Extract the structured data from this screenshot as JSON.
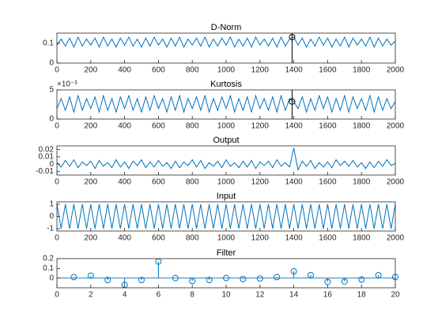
{
  "chart_data": [
    {
      "type": "line",
      "title": "D-Norm",
      "x": [
        0,
        25,
        50,
        75,
        100,
        125,
        150,
        175,
        200,
        225,
        250,
        275,
        300,
        325,
        350,
        375,
        400,
        425,
        450,
        475,
        500,
        525,
        550,
        575,
        600,
        625,
        650,
        675,
        700,
        725,
        750,
        775,
        800,
        825,
        850,
        875,
        900,
        925,
        950,
        975,
        1000,
        1025,
        1050,
        1075,
        1100,
        1125,
        1150,
        1175,
        1200,
        1225,
        1250,
        1275,
        1300,
        1325,
        1350,
        1375,
        1400,
        1425,
        1450,
        1475,
        1500,
        1525,
        1550,
        1575,
        1600,
        1625,
        1650,
        1675,
        1700,
        1725,
        1750,
        1775,
        1800,
        1825,
        1850,
        1875,
        1900,
        1925,
        1950,
        1975,
        2000
      ],
      "series": [
        {
          "color": "#0072bd",
          "values": [
            0.09,
            0.12,
            0.085,
            0.125,
            0.08,
            0.13,
            0.085,
            0.12,
            0.09,
            0.125,
            0.08,
            0.13,
            0.085,
            0.12,
            0.08,
            0.125,
            0.09,
            0.13,
            0.085,
            0.12,
            0.08,
            0.125,
            0.085,
            0.13,
            0.09,
            0.12,
            0.08,
            0.125,
            0.085,
            0.13,
            0.08,
            0.12,
            0.09,
            0.125,
            0.085,
            0.13,
            0.08,
            0.12,
            0.085,
            0.125,
            0.09,
            0.13,
            0.08,
            0.12,
            0.085,
            0.125,
            0.08,
            0.13,
            0.09,
            0.12,
            0.085,
            0.125,
            0.08,
            0.13,
            0.085,
            0.12,
            0.13,
            0.09,
            0.125,
            0.08,
            0.12,
            0.085,
            0.13,
            0.09,
            0.125,
            0.08,
            0.12,
            0.085,
            0.13,
            0.08,
            0.125,
            0.09,
            0.12,
            0.085,
            0.13,
            0.08,
            0.125,
            0.085,
            0.12,
            0.09,
            0.11
          ]
        }
      ],
      "marker": {
        "x": 1390,
        "y": 0.13
      },
      "xlim": [
        0,
        2000
      ],
      "xticks": [
        0,
        200,
        400,
        600,
        800,
        1000,
        1200,
        1400,
        1600,
        1800,
        2000
      ],
      "ylim": [
        0,
        0.15
      ],
      "yticks": [
        0,
        0.1
      ]
    },
    {
      "type": "line",
      "title": "Kurtosis",
      "y_exponent": "×10⁻³",
      "x": [
        0,
        25,
        50,
        75,
        100,
        125,
        150,
        175,
        200,
        225,
        250,
        275,
        300,
        325,
        350,
        375,
        400,
        425,
        450,
        475,
        500,
        525,
        550,
        575,
        600,
        625,
        650,
        675,
        700,
        725,
        750,
        775,
        800,
        825,
        850,
        875,
        900,
        925,
        950,
        975,
        1000,
        1025,
        1050,
        1075,
        1100,
        1125,
        1150,
        1175,
        1200,
        1225,
        1250,
        1275,
        1300,
        1325,
        1350,
        1375,
        1400,
        1425,
        1450,
        1475,
        1500,
        1525,
        1550,
        1575,
        1600,
        1625,
        1650,
        1675,
        1700,
        1725,
        1750,
        1775,
        1800,
        1825,
        1850,
        1875,
        1900,
        1925,
        1950,
        1975,
        2000
      ],
      "series": [
        {
          "color": "#0072bd",
          "values": [
            0.0018,
            0.0035,
            0.0015,
            0.0038,
            0.0012,
            0.004,
            0.0015,
            0.0035,
            0.0018,
            0.0038,
            0.0012,
            0.004,
            0.0015,
            0.0035,
            0.0012,
            0.0038,
            0.0018,
            0.004,
            0.0015,
            0.0035,
            0.0012,
            0.0038,
            0.0015,
            0.004,
            0.0018,
            0.0035,
            0.0012,
            0.0038,
            0.0015,
            0.004,
            0.0012,
            0.0035,
            0.0018,
            0.0038,
            0.0015,
            0.004,
            0.0012,
            0.0035,
            0.0015,
            0.0038,
            0.0018,
            0.004,
            0.0012,
            0.0035,
            0.0015,
            0.0038,
            0.0012,
            0.004,
            0.0018,
            0.0035,
            0.0015,
            0.0038,
            0.0012,
            0.004,
            0.0015,
            0.0035,
            0.003,
            0.0018,
            0.0038,
            0.0012,
            0.0035,
            0.0015,
            0.004,
            0.0018,
            0.0038,
            0.0012,
            0.0035,
            0.0015,
            0.004,
            0.0012,
            0.0038,
            0.0018,
            0.0035,
            0.0015,
            0.004,
            0.0012,
            0.0038,
            0.0015,
            0.0035,
            0.0018,
            0.003
          ]
        }
      ],
      "marker": {
        "x": 1390,
        "y": 0.003
      },
      "xlim": [
        0,
        2000
      ],
      "xticks": [
        0,
        200,
        400,
        600,
        800,
        1000,
        1200,
        1400,
        1600,
        1800,
        2000
      ],
      "ylim": [
        0,
        0.005
      ],
      "yticks": [
        0,
        {
          "value": 0.005,
          "label": "5"
        }
      ]
    },
    {
      "type": "line",
      "title": "Output",
      "x": [
        0,
        25,
        50,
        75,
        100,
        125,
        150,
        175,
        200,
        225,
        250,
        275,
        300,
        325,
        350,
        375,
        400,
        425,
        450,
        475,
        500,
        525,
        550,
        575,
        600,
        625,
        650,
        675,
        700,
        725,
        750,
        775,
        800,
        825,
        850,
        875,
        900,
        925,
        950,
        975,
        1000,
        1025,
        1050,
        1075,
        1100,
        1125,
        1150,
        1175,
        1200,
        1225,
        1250,
        1275,
        1300,
        1325,
        1350,
        1375,
        1400,
        1425,
        1450,
        1475,
        1500,
        1525,
        1550,
        1575,
        1600,
        1625,
        1650,
        1675,
        1700,
        1725,
        1750,
        1775,
        1800,
        1825,
        1850,
        1875,
        1900,
        1925,
        1950,
        1975,
        2000
      ],
      "series": [
        {
          "color": "#0072bd",
          "values": [
            0.002,
            -0.004,
            0.005,
            -0.003,
            0.006,
            -0.005,
            0.003,
            -0.002,
            0.004,
            -0.006,
            0.005,
            -0.003,
            0.002,
            -0.005,
            0.006,
            -0.004,
            0.003,
            -0.006,
            0.004,
            -0.002,
            0.006,
            -0.005,
            0.003,
            -0.004,
            0.005,
            -0.003,
            0.002,
            -0.006,
            0.004,
            -0.005,
            0.003,
            -0.002,
            0.006,
            -0.004,
            0.005,
            -0.006,
            0.002,
            -0.003,
            0.004,
            -0.005,
            0.006,
            -0.003,
            0.002,
            -0.005,
            0.004,
            -0.004,
            0.005,
            -0.006,
            0.003,
            -0.002,
            0.004,
            -0.005,
            0.006,
            -0.003,
            0.002,
            -0.004,
            0.022,
            -0.008,
            0.004,
            -0.003,
            0.005,
            -0.006,
            0.002,
            -0.004,
            0.003,
            -0.005,
            0.006,
            -0.002,
            0.004,
            -0.003,
            0.005,
            -0.004,
            0.002,
            -0.006,
            0.003,
            -0.005,
            0.004,
            -0.003,
            0.006,
            -0.002,
            0.001
          ]
        }
      ],
      "xlim": [
        0,
        2000
      ],
      "xticks": [
        0,
        200,
        400,
        600,
        800,
        1000,
        1200,
        1400,
        1600,
        1800,
        2000
      ],
      "ylim": [
        -0.015,
        0.025
      ],
      "yticks": [
        -0.01,
        0,
        0.01,
        0.02
      ]
    },
    {
      "type": "line",
      "title": "Input",
      "x": [
        0,
        25,
        50,
        75,
        100,
        125,
        150,
        175,
        200,
        225,
        250,
        275,
        300,
        325,
        350,
        375,
        400,
        425,
        450,
        475,
        500,
        525,
        550,
        575,
        600,
        625,
        650,
        675,
        700,
        725,
        750,
        775,
        800,
        825,
        850,
        875,
        900,
        925,
        950,
        975,
        1000,
        1025,
        1050,
        1075,
        1100,
        1125,
        1150,
        1175,
        1200,
        1225,
        1250,
        1275,
        1300,
        1325,
        1350,
        1375,
        1400,
        1425,
        1450,
        1475,
        1500,
        1525,
        1550,
        1575,
        1600,
        1625,
        1650,
        1675,
        1700,
        1725,
        1750,
        1775,
        1800,
        1825,
        1850,
        1875,
        1900,
        1925,
        1950,
        1975,
        2000
      ],
      "series": [
        {
          "color": "#0072bd",
          "values": [
            1,
            -1,
            1,
            -1,
            1,
            -1,
            1,
            -1,
            1,
            -1,
            1,
            -1,
            1,
            -1,
            1,
            -1,
            1,
            -1,
            1,
            -1,
            1,
            -1,
            1,
            -1,
            1,
            -1,
            1,
            -1,
            1,
            -1,
            1,
            -1,
            1,
            -1,
            1,
            -1,
            1,
            -1,
            1,
            -1,
            1,
            -1,
            1,
            -1,
            1,
            -1,
            1,
            -1,
            1,
            -1,
            1,
            -1,
            1,
            -1,
            1,
            -1,
            1,
            -1,
            1,
            -1,
            1,
            -1,
            1,
            -1,
            1,
            -1,
            1,
            -1,
            1,
            -1,
            1,
            -1,
            1,
            -1,
            1,
            -1,
            1,
            -1,
            1,
            -1,
            1
          ]
        }
      ],
      "xlim": [
        0,
        2000
      ],
      "xticks": [
        0,
        200,
        400,
        600,
        800,
        1000,
        1200,
        1400,
        1600,
        1800,
        2000
      ],
      "ylim": [
        -1.2,
        1.2
      ],
      "yticks": [
        -1,
        0,
        1
      ]
    },
    {
      "type": "stem",
      "title": "Filter",
      "x": [
        1,
        2,
        3,
        4,
        5,
        6,
        7,
        8,
        9,
        10,
        11,
        12,
        13,
        14,
        15,
        16,
        17,
        18,
        19,
        20
      ],
      "series": [
        {
          "color": "#0072bd",
          "values": [
            0.01,
            0.025,
            -0.02,
            -0.07,
            -0.02,
            0.17,
            0,
            -0.03,
            -0.02,
            0,
            -0.01,
            -0.005,
            0.01,
            0.07,
            0.03,
            -0.04,
            -0.035,
            -0.015,
            0.03,
            0.01
          ]
        }
      ],
      "xlim": [
        0,
        20
      ],
      "xticks": [
        0,
        2,
        4,
        6,
        8,
        10,
        12,
        14,
        16,
        18,
        20
      ],
      "ylim": [
        -0.1,
        0.2
      ],
      "yticks": [
        0,
        0.1,
        0.2
      ]
    }
  ]
}
